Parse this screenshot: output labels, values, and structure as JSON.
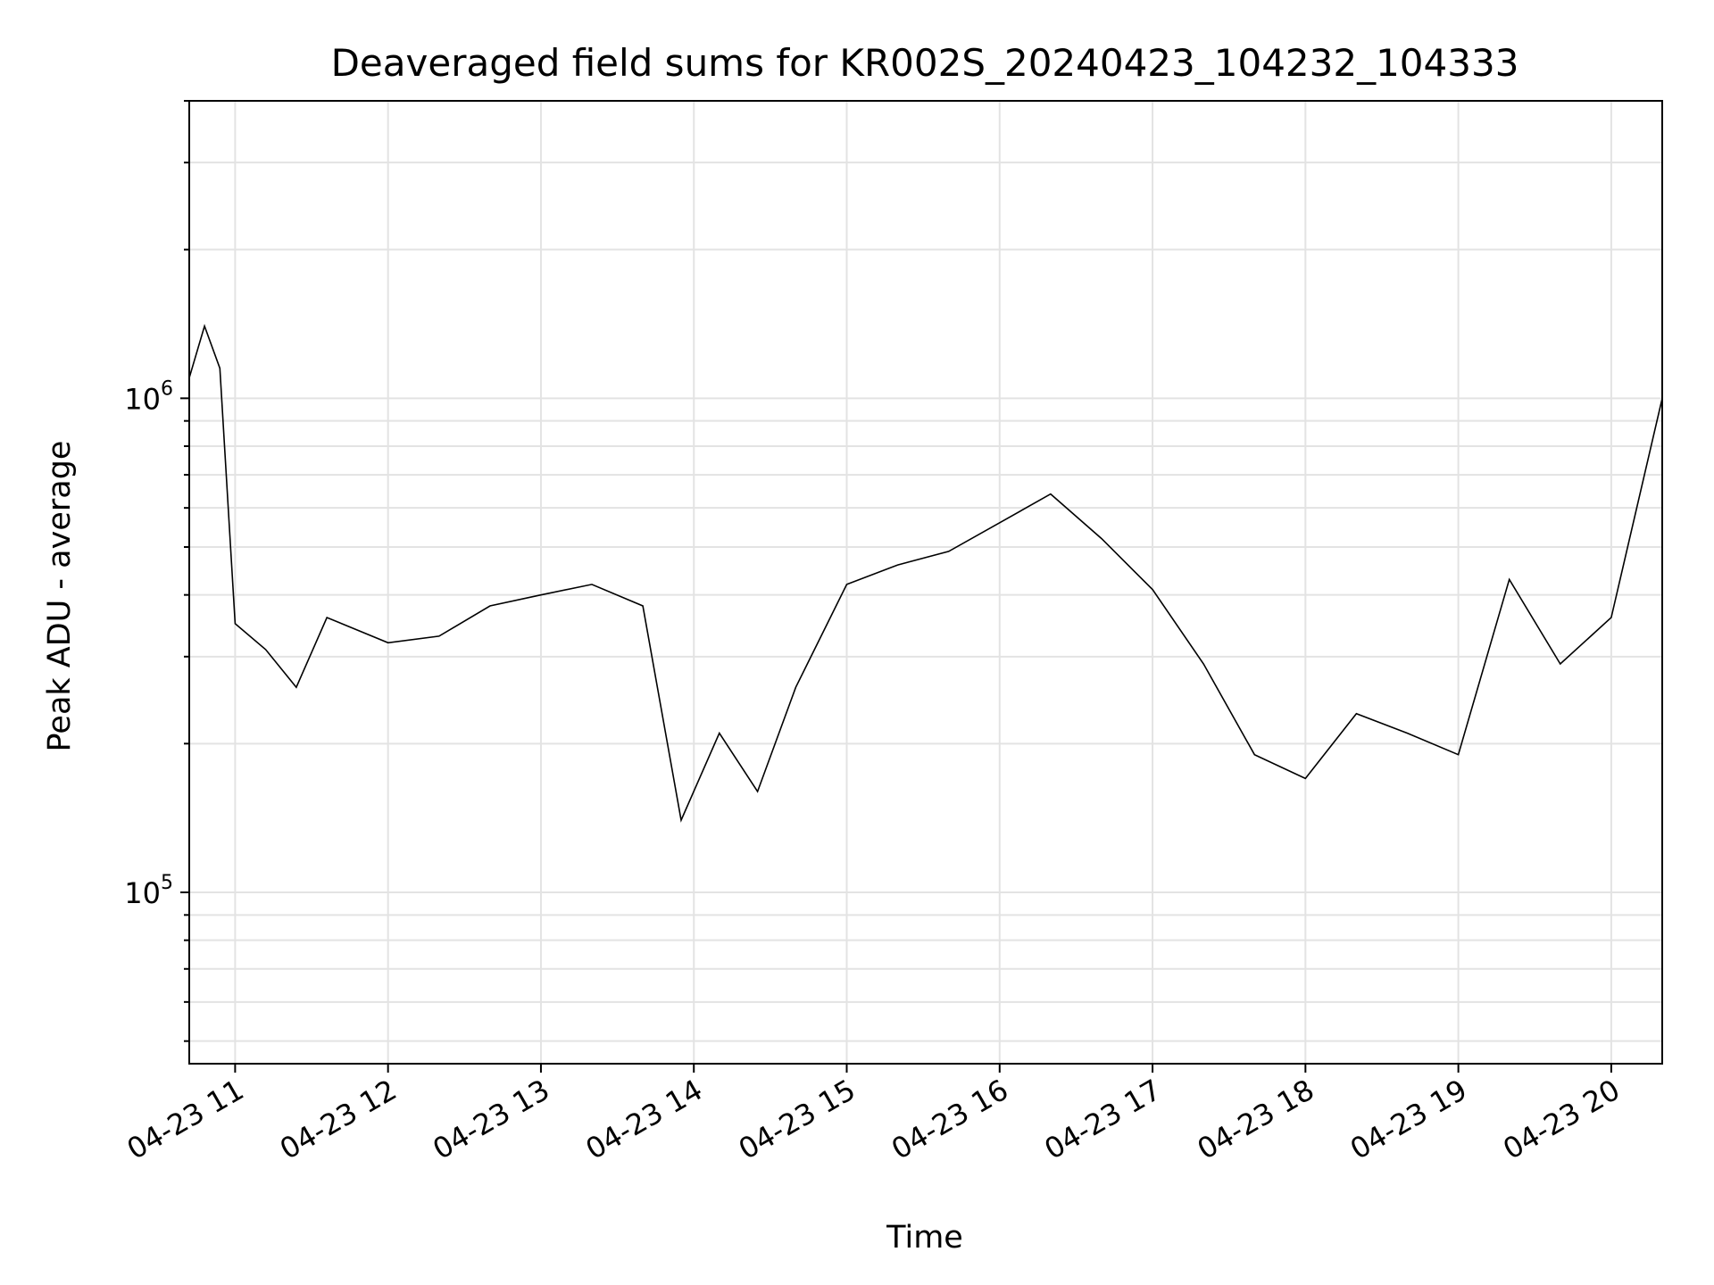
{
  "chart_data": {
    "type": "line",
    "title": "Deaveraged field sums for KR002S_20240423_104232_104333",
    "xlabel": "Time",
    "ylabel": "Peak ADU - average",
    "xlim": [
      "2024-04-23 10:42",
      "2024-04-23 20:20"
    ],
    "ylim": [
      45000,
      4000000
    ],
    "yscale": "log",
    "grid": true,
    "legend": "none",
    "line_color": "#000000",
    "x_ticks": [
      {
        "x": "2024-04-23 11:00",
        "label": "04-23 11"
      },
      {
        "x": "2024-04-23 12:00",
        "label": "04-23 12"
      },
      {
        "x": "2024-04-23 13:00",
        "label": "04-23 13"
      },
      {
        "x": "2024-04-23 14:00",
        "label": "04-23 14"
      },
      {
        "x": "2024-04-23 15:00",
        "label": "04-23 15"
      },
      {
        "x": "2024-04-23 16:00",
        "label": "04-23 16"
      },
      {
        "x": "2024-04-23 17:00",
        "label": "04-23 17"
      },
      {
        "x": "2024-04-23 18:00",
        "label": "04-23 18"
      },
      {
        "x": "2024-04-23 19:00",
        "label": "04-23 19"
      },
      {
        "x": "2024-04-23 20:00",
        "label": "04-23 20"
      }
    ],
    "y_major_ticks": [
      {
        "y": 100000,
        "base": "10",
        "exp": "5"
      },
      {
        "y": 1000000,
        "base": "10",
        "exp": "6"
      }
    ],
    "series": [
      {
        "x": [
          "2024-04-23 10:42",
          "2024-04-23 10:48",
          "2024-04-23 10:54",
          "2024-04-23 11:00",
          "2024-04-23 11:12",
          "2024-04-23 11:24",
          "2024-04-23 11:36",
          "2024-04-23 12:00",
          "2024-04-23 12:20",
          "2024-04-23 12:40",
          "2024-04-23 13:00",
          "2024-04-23 13:20",
          "2024-04-23 13:40",
          "2024-04-23 13:55",
          "2024-04-23 14:10",
          "2024-04-23 14:25",
          "2024-04-23 14:40",
          "2024-04-23 15:00",
          "2024-04-23 15:20",
          "2024-04-23 15:40",
          "2024-04-23 16:00",
          "2024-04-23 16:20",
          "2024-04-23 16:40",
          "2024-04-23 17:00",
          "2024-04-23 17:20",
          "2024-04-23 17:40",
          "2024-04-23 18:00",
          "2024-04-23 18:20",
          "2024-04-23 18:40",
          "2024-04-23 19:00",
          "2024-04-23 19:20",
          "2024-04-23 19:40",
          "2024-04-23 20:00",
          "2024-04-23 20:20"
        ],
        "y": [
          1100000,
          1400000,
          1150000,
          350000,
          310000,
          260000,
          360000,
          320000,
          330000,
          380000,
          400000,
          420000,
          380000,
          140000,
          210000,
          160000,
          260000,
          420000,
          460000,
          490000,
          560000,
          640000,
          520000,
          410000,
          290000,
          190000,
          170000,
          230000,
          210000,
          190000,
          430000,
          290000,
          360000,
          1000000
        ]
      }
    ]
  }
}
